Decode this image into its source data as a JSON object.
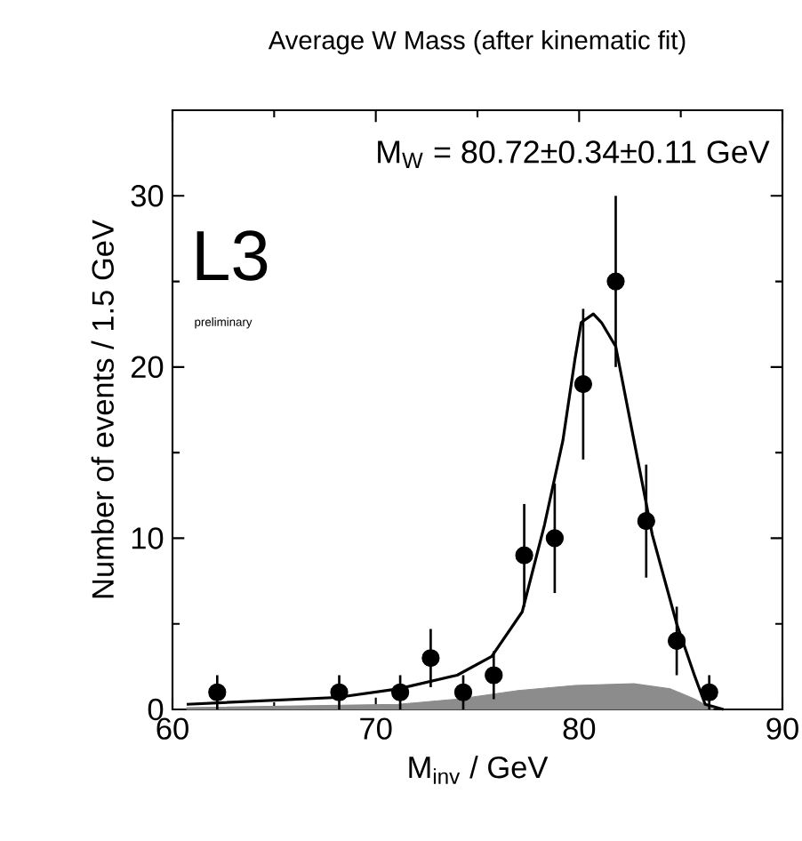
{
  "chart_data": {
    "type": "scatter",
    "title": "Average W Mass (after kinematic fit)",
    "xlabel": "M$_{inv}$ / GeV",
    "ylabel": "Number of events / 1.5 GeV",
    "annotations": [
      "M$_{W}$ = 80.72±0.34±0.11 GeV",
      "L3",
      "preliminary"
    ],
    "xlim": [
      60,
      90
    ],
    "xticks": [
      60,
      70,
      80,
      90
    ],
    "ylim": [
      0,
      35
    ],
    "yticks": [
      0,
      10,
      20,
      30
    ],
    "grid": false,
    "series": [
      {
        "type": "area",
        "color": "#8c8c8c",
        "marker": "none",
        "x": [
          60.7,
          71.1,
          74.0,
          77.0,
          79.8,
          82.7,
          84.5,
          85.7,
          86.6
        ],
        "values": [
          0.1,
          0.3,
          0.6,
          1.1,
          1.4,
          1.5,
          1.2,
          0.6,
          0
        ]
      },
      {
        "type": "line",
        "color": "#000000",
        "marker": "none",
        "line_style": "solid",
        "x": [
          60.7,
          68.1,
          71.1,
          74.0,
          75.7,
          77.2,
          78.3,
          79.2,
          79.8,
          80.1,
          80.7,
          81.1,
          81.8,
          82.7,
          83.6,
          84.8,
          85.7,
          86.2,
          87.1
        ],
        "values": [
          0.3,
          0.7,
          1.2,
          2.0,
          3.1,
          5.7,
          10.8,
          15.7,
          20.5,
          22.6,
          23.1,
          22.6,
          21.2,
          15.7,
          10.2,
          5.0,
          1.9,
          0.3,
          0
        ]
      },
      {
        "color": "#000000",
        "marker": "circle",
        "x": [
          62.2,
          68.2,
          71.2,
          72.7,
          74.3,
          75.8,
          77.3,
          78.8,
          80.2,
          81.8,
          83.3,
          84.8,
          86.4
        ],
        "values": [
          1,
          1,
          1,
          3,
          1,
          2,
          9,
          10,
          19,
          25,
          11,
          4,
          1
        ],
        "errors": [
          1,
          1,
          1,
          1.7,
          1,
          1.4,
          3,
          3.2,
          4.4,
          5,
          3.3,
          2,
          1
        ]
      }
    ]
  }
}
